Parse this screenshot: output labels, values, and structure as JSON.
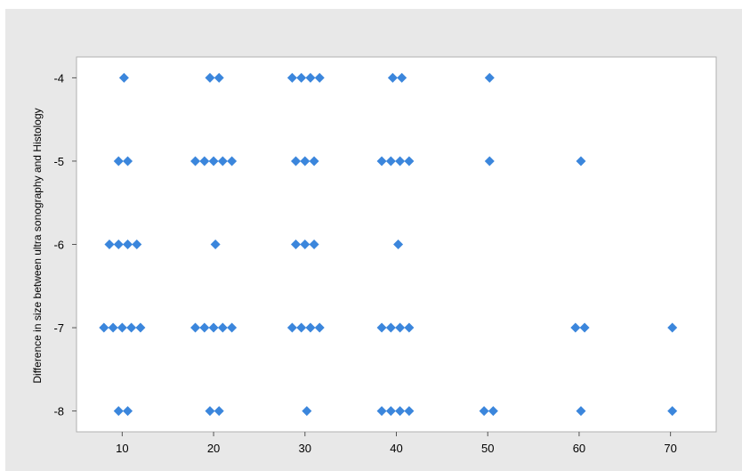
{
  "header_text": "",
  "chart_data": {
    "type": "scatter",
    "title": "",
    "xlabel": "",
    "ylabel": "Difference in size between ultra sonography and Histology",
    "xlim": [
      5,
      75
    ],
    "ylim": [
      -8.25,
      -3.75
    ],
    "xticks": [
      10,
      20,
      30,
      40,
      50,
      60,
      70
    ],
    "yticks": [
      -4,
      -5,
      -6,
      -7,
      -8
    ],
    "grid": false,
    "marker": "diamond",
    "marker_color": "#3b86dc",
    "points": [
      {
        "x": 10.2,
        "y": -4
      },
      {
        "x": 19.6,
        "y": -4
      },
      {
        "x": 20.6,
        "y": -4
      },
      {
        "x": 28.6,
        "y": -4
      },
      {
        "x": 29.6,
        "y": -4
      },
      {
        "x": 30.6,
        "y": -4
      },
      {
        "x": 31.6,
        "y": -4
      },
      {
        "x": 39.6,
        "y": -4
      },
      {
        "x": 40.6,
        "y": -4
      },
      {
        "x": 50.2,
        "y": -4
      },
      {
        "x": 9.6,
        "y": -5
      },
      {
        "x": 10.6,
        "y": -5
      },
      {
        "x": 18.0,
        "y": -5
      },
      {
        "x": 19.0,
        "y": -5
      },
      {
        "x": 20.0,
        "y": -5
      },
      {
        "x": 21.0,
        "y": -5
      },
      {
        "x": 22.0,
        "y": -5
      },
      {
        "x": 29.0,
        "y": -5
      },
      {
        "x": 30.0,
        "y": -5
      },
      {
        "x": 31.0,
        "y": -5
      },
      {
        "x": 38.4,
        "y": -5
      },
      {
        "x": 39.4,
        "y": -5
      },
      {
        "x": 40.4,
        "y": -5
      },
      {
        "x": 41.4,
        "y": -5
      },
      {
        "x": 50.2,
        "y": -5
      },
      {
        "x": 60.2,
        "y": -5
      },
      {
        "x": 8.6,
        "y": -6
      },
      {
        "x": 9.6,
        "y": -6
      },
      {
        "x": 10.6,
        "y": -6
      },
      {
        "x": 11.6,
        "y": -6
      },
      {
        "x": 20.2,
        "y": -6
      },
      {
        "x": 29.0,
        "y": -6
      },
      {
        "x": 30.0,
        "y": -6
      },
      {
        "x": 31.0,
        "y": -6
      },
      {
        "x": 40.2,
        "y": -6
      },
      {
        "x": 8.0,
        "y": -7
      },
      {
        "x": 9.0,
        "y": -7
      },
      {
        "x": 10.0,
        "y": -7
      },
      {
        "x": 11.0,
        "y": -7
      },
      {
        "x": 12.0,
        "y": -7
      },
      {
        "x": 18.0,
        "y": -7
      },
      {
        "x": 19.0,
        "y": -7
      },
      {
        "x": 20.0,
        "y": -7
      },
      {
        "x": 21.0,
        "y": -7
      },
      {
        "x": 22.0,
        "y": -7
      },
      {
        "x": 28.6,
        "y": -7
      },
      {
        "x": 29.6,
        "y": -7
      },
      {
        "x": 30.6,
        "y": -7
      },
      {
        "x": 31.6,
        "y": -7
      },
      {
        "x": 38.4,
        "y": -7
      },
      {
        "x": 39.4,
        "y": -7
      },
      {
        "x": 40.4,
        "y": -7
      },
      {
        "x": 41.4,
        "y": -7
      },
      {
        "x": 59.6,
        "y": -7
      },
      {
        "x": 60.6,
        "y": -7
      },
      {
        "x": 70.2,
        "y": -7
      },
      {
        "x": 9.6,
        "y": -8
      },
      {
        "x": 10.6,
        "y": -8
      },
      {
        "x": 19.6,
        "y": -8
      },
      {
        "x": 20.6,
        "y": -8
      },
      {
        "x": 30.2,
        "y": -8
      },
      {
        "x": 38.4,
        "y": -8
      },
      {
        "x": 39.4,
        "y": -8
      },
      {
        "x": 40.4,
        "y": -8
      },
      {
        "x": 41.4,
        "y": -8
      },
      {
        "x": 49.6,
        "y": -8
      },
      {
        "x": 50.6,
        "y": -8
      },
      {
        "x": 60.2,
        "y": -8
      },
      {
        "x": 70.2,
        "y": -8
      }
    ]
  }
}
